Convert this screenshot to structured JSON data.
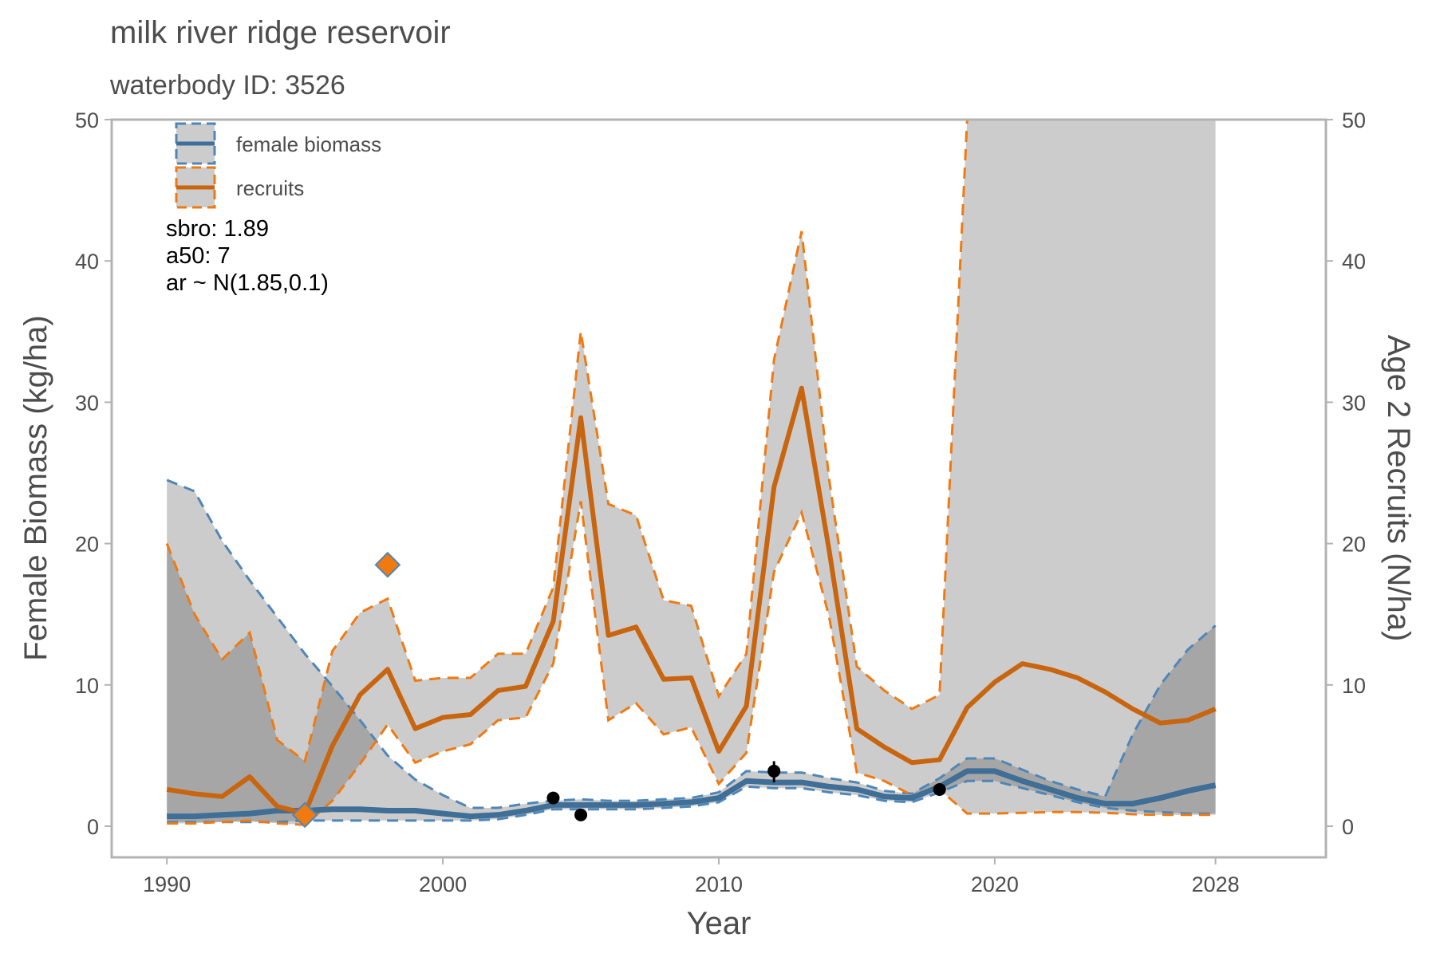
{
  "chart_data": {
    "type": "line",
    "title": "milk river ridge reservoir",
    "subtitle": "waterbody ID: 3526",
    "xlabel": "Year",
    "ylabel": "Female Biomass (kg/ha)",
    "y2label": "Age 2 Recruits (N/ha)",
    "xlim": [
      1988,
      2032
    ],
    "ylim": [
      -2.2,
      50
    ],
    "x_ticks": [
      1990,
      2000,
      2010,
      2020,
      2028
    ],
    "y_ticks": [
      0,
      10,
      20,
      30,
      40,
      50
    ],
    "grid": false,
    "legend_position": "top-left",
    "annotations": [
      "sbro: 1.89",
      "a50: 7",
      "ar ~ N(1.85,0.1)"
    ],
    "colors": {
      "biomass": "#3f6e96",
      "biomass_dash": "#4f86b8",
      "recruits": "#c8650e",
      "recruits_dash": "#f07a10",
      "band": "#cccccc",
      "band_overlap": "#a6a6a6",
      "axis": "#b3b3b3",
      "text": "#4d4d4d"
    },
    "series": [
      {
        "name": "female biomass",
        "x": [
          1990,
          1991,
          1992,
          1993,
          1994,
          1995,
          1996,
          1997,
          1998,
          1999,
          2000,
          2001,
          2002,
          2003,
          2004,
          2005,
          2006,
          2007,
          2008,
          2009,
          2010,
          2011,
          2012,
          2013,
          2014,
          2015,
          2016,
          2017,
          2018,
          2019,
          2020,
          2021,
          2022,
          2023,
          2024,
          2025,
          2026,
          2027,
          2028
        ],
        "values": [
          0.7,
          0.7,
          0.8,
          0.9,
          1.1,
          1.1,
          1.2,
          1.2,
          1.1,
          1.1,
          0.9,
          0.7,
          0.8,
          1.1,
          1.5,
          1.5,
          1.5,
          1.5,
          1.6,
          1.7,
          2.0,
          3.2,
          3.1,
          3.1,
          2.8,
          2.6,
          2.1,
          2.0,
          2.8,
          3.9,
          3.9,
          3.2,
          2.6,
          2.0,
          1.6,
          1.6,
          2.0,
          2.5,
          2.9
        ],
        "lower": [
          0.3,
          0.3,
          0.3,
          0.3,
          0.3,
          0.4,
          0.4,
          0.4,
          0.4,
          0.4,
          0.4,
          0.4,
          0.5,
          0.8,
          1.2,
          1.2,
          1.2,
          1.2,
          1.3,
          1.4,
          1.7,
          2.8,
          2.7,
          2.7,
          2.4,
          2.2,
          1.8,
          1.7,
          2.4,
          3.2,
          3.2,
          2.7,
          2.2,
          1.7,
          1.3,
          1.1,
          1.0,
          0.9,
          0.9
        ],
        "upper": [
          24.5,
          23.7,
          20.2,
          17.4,
          14.8,
          12.2,
          9.9,
          7.5,
          5.0,
          3.3,
          2.2,
          1.3,
          1.3,
          1.6,
          1.8,
          1.9,
          1.8,
          1.8,
          1.9,
          2.0,
          2.4,
          3.9,
          3.8,
          3.8,
          3.4,
          3.1,
          2.5,
          2.3,
          3.4,
          4.8,
          4.8,
          4.0,
          3.2,
          2.6,
          2.1,
          6.5,
          10.0,
          12.5,
          14.2
        ]
      },
      {
        "name": "recruits",
        "x": [
          1990,
          1991,
          1992,
          1993,
          1994,
          1995,
          1996,
          1997,
          1998,
          1999,
          2000,
          2001,
          2002,
          2003,
          2004,
          2005,
          2006,
          2007,
          2008,
          2009,
          2010,
          2011,
          2012,
          2013,
          2014,
          2015,
          2016,
          2017,
          2018,
          2019,
          2020,
          2021,
          2022,
          2023,
          2024,
          2025,
          2026,
          2027,
          2028
        ],
        "values": [
          2.6,
          2.3,
          2.1,
          3.5,
          1.4,
          0.9,
          5.7,
          9.3,
          11.1,
          6.9,
          7.7,
          7.9,
          9.6,
          9.9,
          14.5,
          28.9,
          13.5,
          14.1,
          10.4,
          10.5,
          5.3,
          8.5,
          24.0,
          31.0,
          19.5,
          6.9,
          5.6,
          4.5,
          4.7,
          8.4,
          10.2,
          11.5,
          11.1,
          10.5,
          9.5,
          8.3,
          7.3,
          7.5,
          8.3
        ],
        "lower": [
          0.2,
          0.2,
          0.3,
          0.4,
          0.2,
          0.1,
          1.8,
          4.4,
          7.2,
          4.5,
          5.3,
          5.8,
          7.5,
          7.7,
          11.5,
          23.0,
          7.5,
          8.7,
          6.5,
          7.0,
          3.0,
          5.2,
          18.0,
          22.2,
          14.8,
          3.8,
          3.2,
          2.2,
          2.6,
          0.9,
          0.9,
          0.95,
          1.0,
          1.0,
          0.95,
          0.85,
          0.8,
          0.8,
          0.8
        ],
        "upper": [
          20.0,
          15.0,
          11.8,
          13.7,
          6.1,
          4.6,
          12.4,
          15.1,
          16.1,
          10.3,
          10.5,
          10.5,
          12.2,
          12.2,
          16.9,
          35.0,
          22.8,
          22.0,
          16.0,
          15.6,
          9.2,
          12.2,
          33.0,
          42.1,
          24.5,
          11.3,
          9.6,
          8.3,
          9.3,
          50,
          50,
          50,
          50,
          50,
          50,
          50,
          50,
          50,
          50
        ]
      }
    ],
    "points": {
      "recruit_observations": [
        {
          "x": 1995,
          "y": 0.8
        },
        {
          "x": 1998,
          "y": 18.5
        }
      ],
      "biomass_observations": [
        {
          "x": 2004,
          "y": 2.0
        },
        {
          "x": 2005,
          "y": 0.8
        },
        {
          "x": 2012,
          "y": 3.9,
          "ymin": 3.1,
          "ymax": 4.6
        },
        {
          "x": 2018,
          "y": 2.6
        }
      ]
    }
  }
}
